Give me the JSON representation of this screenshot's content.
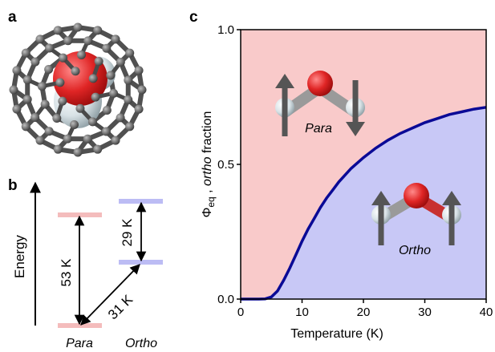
{
  "panels": {
    "a": "a",
    "b": "b",
    "c": "c"
  },
  "panel_b": {
    "ylabel": "Energy",
    "level_labels": [
      "Para",
      "Ortho"
    ],
    "gaps": [
      {
        "label": "53 K"
      },
      {
        "label": "29 K"
      },
      {
        "label": "31 K"
      }
    ],
    "colors": {
      "para": "#f4bcbc",
      "ortho": "#bcbcf4"
    }
  },
  "chart_data": {
    "type": "area",
    "xlabel": "Temperature (K)",
    "ylabel_symbol": "Φ",
    "ylabel_sub": "eq",
    "ylabel_sep": " , ",
    "ylabel_ortho": "ortho",
    "ylabel_rest": " fraction",
    "xlim": [
      0,
      40
    ],
    "ylim": [
      0,
      1.0
    ],
    "xticks": [
      0,
      10,
      20,
      30,
      40
    ],
    "xtick_labels": [
      "0",
      "10",
      "20",
      "30",
      "40"
    ],
    "yticks": [
      0,
      0.5,
      1.0
    ],
    "ytick_labels": [
      "0.0",
      "0.5",
      "1.0"
    ],
    "curve_color": "#0a0a96",
    "fill_above": "#f9caca",
    "fill_below": "#c8c8f6",
    "region_labels": {
      "upper": "Para",
      "lower": "Ortho"
    },
    "series": [
      {
        "x": [
          0,
          3,
          4,
          5,
          6,
          7,
          8,
          9,
          10,
          11,
          12,
          13,
          14,
          15,
          16,
          18,
          20,
          22,
          24,
          26,
          28,
          30,
          32,
          34,
          36,
          38,
          40
        ],
        "y": [
          0,
          0,
          0.001,
          0.008,
          0.03,
          0.07,
          0.115,
          0.165,
          0.215,
          0.26,
          0.3,
          0.34,
          0.375,
          0.405,
          0.435,
          0.485,
          0.525,
          0.56,
          0.59,
          0.615,
          0.635,
          0.655,
          0.67,
          0.685,
          0.695,
          0.705,
          0.712
        ]
      }
    ]
  }
}
